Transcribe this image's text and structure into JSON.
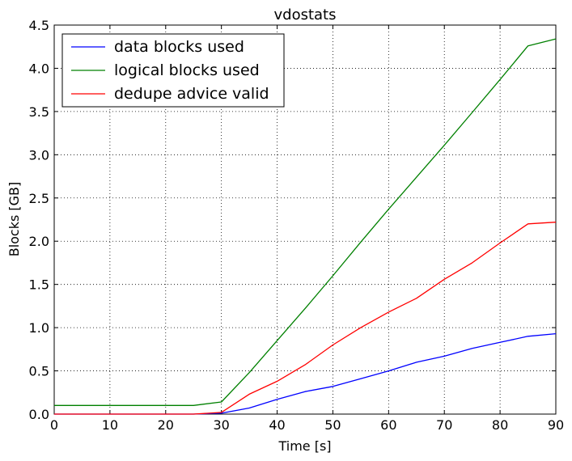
{
  "chart_data": {
    "type": "line",
    "title": "vdostats",
    "xlabel": "Time [s]",
    "ylabel": "Blocks [GB]",
    "xlim": [
      0,
      90
    ],
    "ylim": [
      0,
      4.5
    ],
    "xticks": [
      0,
      10,
      20,
      30,
      40,
      50,
      60,
      70,
      80,
      90
    ],
    "xtick_labels": [
      "0",
      "10",
      "20",
      "30",
      "40",
      "50",
      "60",
      "70",
      "80",
      "90"
    ],
    "yticks": [
      0,
      0.5,
      1,
      1.5,
      2,
      2.5,
      3,
      3.5,
      4,
      4.5
    ],
    "ytick_labels": [
      "0.0",
      "0.5",
      "1.0",
      "1.5",
      "2.0",
      "2.5",
      "3.0",
      "3.5",
      "4.0",
      "4.5"
    ],
    "grid": true,
    "legend_position": "top-left",
    "x": [
      0,
      5,
      10,
      15,
      20,
      25,
      30,
      35,
      40,
      45,
      50,
      55,
      60,
      65,
      70,
      75,
      80,
      85,
      90
    ],
    "series": [
      {
        "name": "data blocks used",
        "color": "#0000ff",
        "values": [
          0.0,
          0.0,
          0.0,
          0.0,
          0.0,
          0.0,
          0.01,
          0.07,
          0.17,
          0.26,
          0.32,
          0.41,
          0.5,
          0.6,
          0.67,
          0.76,
          0.83,
          0.9,
          0.93
        ]
      },
      {
        "name": "logical blocks used",
        "color": "#008000",
        "values": [
          0.1,
          0.1,
          0.1,
          0.1,
          0.1,
          0.1,
          0.14,
          0.48,
          0.85,
          1.22,
          1.6,
          1.99,
          2.37,
          2.74,
          3.11,
          3.49,
          3.87,
          4.26,
          4.34
        ]
      },
      {
        "name": "dedupe advice valid",
        "color": "#ff0000",
        "values": [
          0.0,
          0.0,
          0.0,
          0.0,
          0.0,
          0.0,
          0.02,
          0.23,
          0.38,
          0.57,
          0.8,
          1.0,
          1.18,
          1.34,
          1.56,
          1.75,
          1.98,
          2.2,
          2.22
        ]
      }
    ]
  }
}
